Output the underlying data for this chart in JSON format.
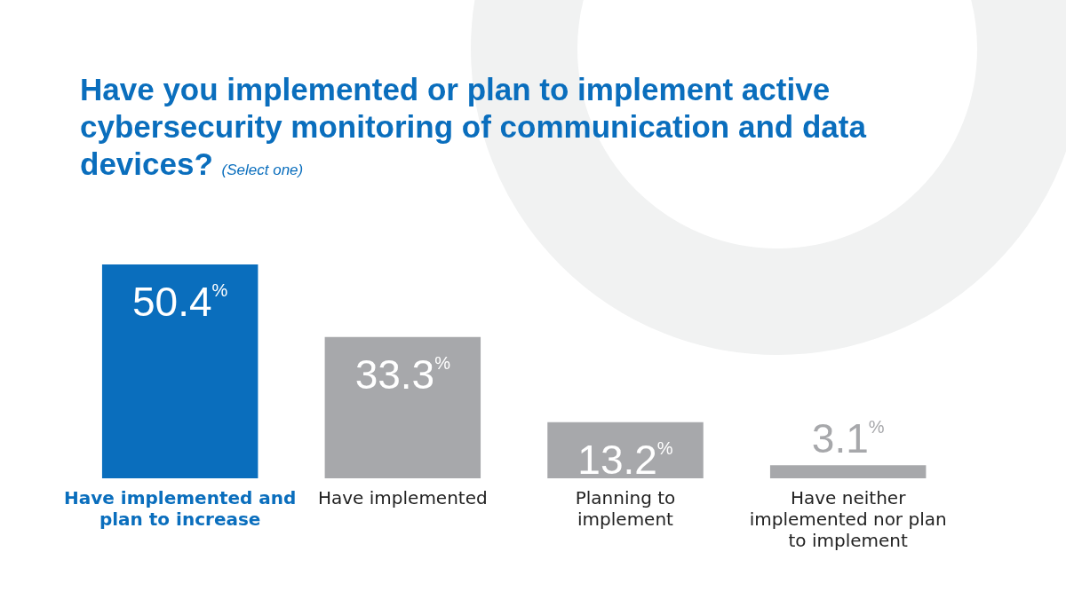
{
  "chart_data": {
    "type": "bar",
    "title": "Have you implemented or plan to implement active cybersecurity monitoring of communication and data devices?",
    "subtitle": "(Select one)",
    "categories": [
      "Have implemented and plan to increase",
      "Have implemented",
      "Planning to implement",
      "Have neither implemented nor plan to implement"
    ],
    "values": [
      50.4,
      33.3,
      13.2,
      3.1
    ],
    "value_labels": [
      "50.4%",
      "33.3%",
      "13.2%",
      "3.1%"
    ],
    "colors": [
      "#0a6ebd",
      "#a7a8ab",
      "#a7a8ab",
      "#a7a8ab"
    ],
    "grid": false,
    "legend": false
  }
}
